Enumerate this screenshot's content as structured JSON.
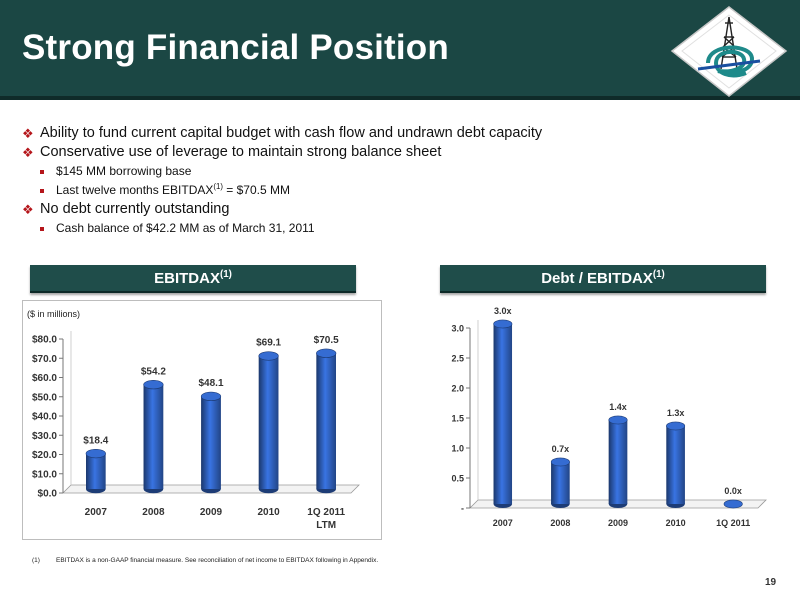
{
  "header": {
    "title": "Strong Financial Position"
  },
  "bullets": [
    {
      "text": "Ability to fund current capital budget with cash flow and undrawn debt capacity"
    },
    {
      "text": "Conservative use of leverage to maintain strong balance sheet",
      "sub": [
        {
          "text": "$145 MM borrowing base"
        },
        {
          "pre": "Last twelve months EBITDAX",
          "sup": "(1)",
          "post": " = $70.5 MM"
        }
      ]
    },
    {
      "text": "No debt currently outstanding",
      "sub": [
        {
          "text": "Cash balance of $42.2 MM as of March 31, 2011"
        }
      ]
    }
  ],
  "panels": {
    "left": {
      "title": "EBITDAX",
      "sup": "(1)"
    },
    "right": {
      "title": "Debt / EBITDAX",
      "sup": "(1)"
    }
  },
  "chart_data": [
    {
      "type": "bar",
      "title": "EBITDAX(1)",
      "unit_note": "($ in millions)",
      "categories": [
        "2007",
        "2008",
        "2009",
        "2010",
        "1Q 2011"
      ],
      "category_sublabel": {
        "1Q 2011": "LTM"
      },
      "values": [
        18.4,
        54.2,
        48.1,
        69.1,
        70.5
      ],
      "data_labels": [
        "$18.4",
        "$54.2",
        "$48.1",
        "$69.1",
        "$70.5"
      ],
      "ylim": [
        0,
        80
      ],
      "yticks": [
        "$0.0",
        "$10.0",
        "$20.0",
        "$30.0",
        "$40.0",
        "$50.0",
        "$60.0",
        "$70.0",
        "$80.0"
      ],
      "ytick_values": [
        0,
        10,
        20,
        30,
        40,
        50,
        60,
        70,
        80
      ],
      "bar_color": "#2a56a8",
      "grid": false
    },
    {
      "type": "bar",
      "title": "Debt / EBITDAX(1)",
      "categories": [
        "2007",
        "2008",
        "2009",
        "2010",
        "1Q 2011"
      ],
      "values": [
        3.0,
        0.7,
        1.4,
        1.3,
        0.0
      ],
      "data_labels": [
        "3.0x",
        "0.7x",
        "1.4x",
        "1.3x",
        "0.0x"
      ],
      "ylim": [
        0,
        3
      ],
      "yticks": [
        "-",
        "0.5",
        "1.0",
        "1.5",
        "2.0",
        "2.5",
        "3.0"
      ],
      "ytick_values": [
        0,
        0.5,
        1,
        1.5,
        2,
        2.5,
        3
      ],
      "bar_color": "#2a56a8",
      "grid": false
    }
  ],
  "footnote": {
    "num": "(1)",
    "text": "EBITDAX is a non-GAAP financial measure. See reconciliation of net income to EBITDAX following in Appendix."
  },
  "page_number": "19",
  "colors": {
    "header_bg": "#1b4744",
    "panel_bg": "#1f4d4a",
    "bullet_mark": "#b5161b",
    "bar": "#2a56a8"
  }
}
